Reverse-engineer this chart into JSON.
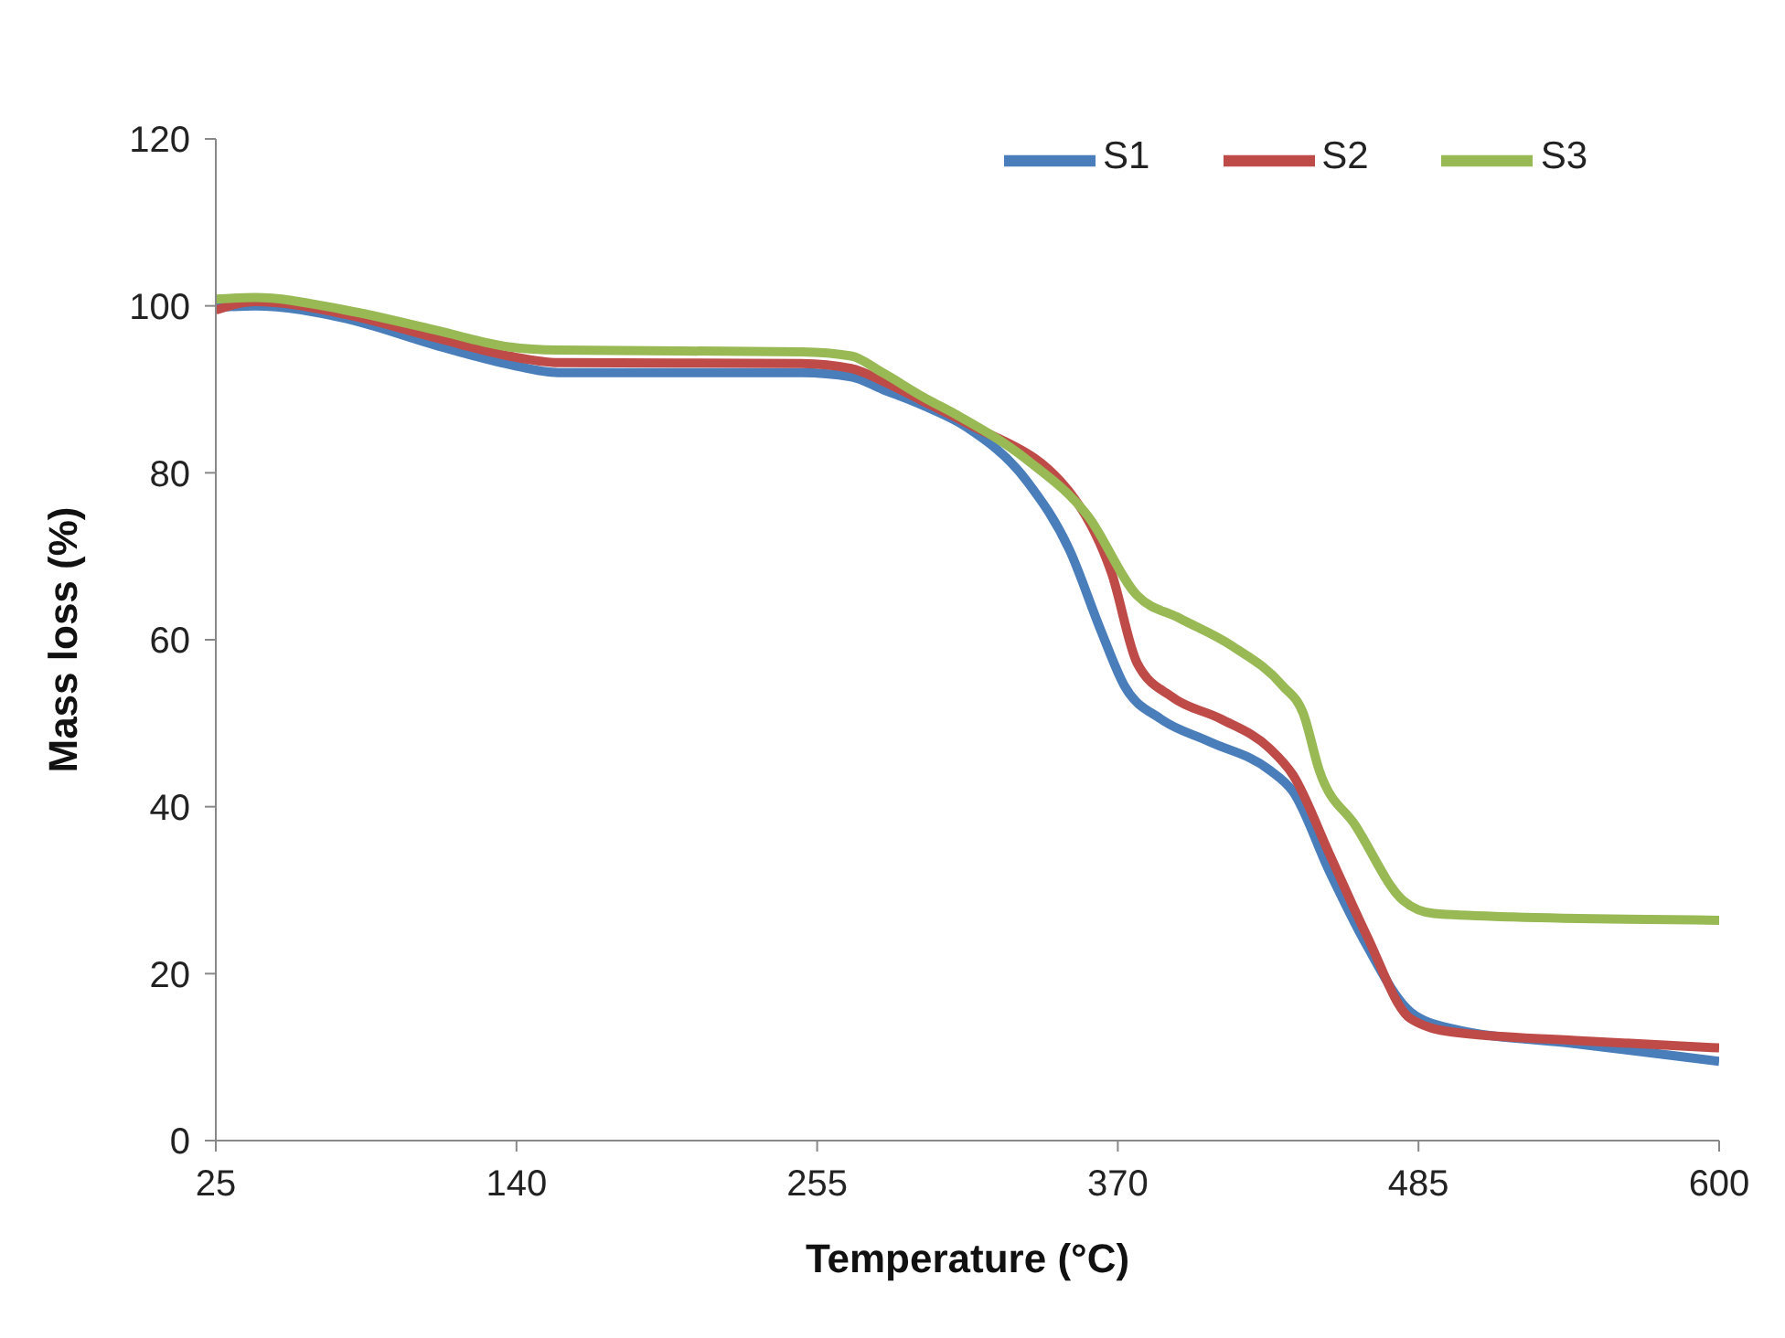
{
  "chart_data": {
    "type": "line",
    "xlabel": "Temperature (°C)",
    "ylabel": "Mass loss (%)",
    "xlim": [
      25,
      600
    ],
    "xticks": [
      25,
      140,
      255,
      370,
      485,
      600
    ],
    "ylim": [
      0,
      120
    ],
    "yticks": [
      0,
      20,
      40,
      60,
      80,
      100,
      120
    ],
    "grid": false,
    "legend": "top right",
    "marker": "none",
    "line_style": "solid",
    "series": [
      {
        "name": "S1",
        "color": "#4a7ebb",
        "x": [
          25,
          40,
          74.5,
          109,
          137,
          156,
          249,
          268,
          280,
          296,
          312,
          335.5,
          351.6,
          363.4,
          372.5,
          386.5,
          405,
          428,
          437,
          451,
          465,
          482,
          498,
          545,
          600
        ],
        "values": [
          99.8,
          100,
          98.5,
          95.3,
          93,
          92,
          92,
          91.5,
          90,
          88,
          85.5,
          78.9,
          70.7,
          61.2,
          54.5,
          50.5,
          47.8,
          44.4,
          41.8,
          32.2,
          23.5,
          15.4,
          13.4,
          11.6,
          9.5
        ]
      },
      {
        "name": "S2",
        "color": "#be4b48",
        "x": [
          25,
          40,
          74.5,
          109,
          137,
          156,
          249,
          268,
          280,
          296,
          312,
          353.7,
          367.6,
          377.4,
          391,
          409.5,
          428,
          437,
          451,
          465,
          482,
          498,
          545,
          600
        ],
        "values": [
          99.5,
          100.5,
          99,
          96.2,
          94,
          93.2,
          93.1,
          92.5,
          91,
          88.5,
          86,
          76.8,
          68,
          57.2,
          53.1,
          50.5,
          47,
          43.8,
          34.3,
          24.7,
          14.6,
          13,
          12,
          11.1
        ]
      },
      {
        "name": "S3",
        "color": "#98b954",
        "x": [
          25,
          40,
          74.5,
          109,
          137,
          156,
          249,
          268,
          280,
          296,
          308,
          335.5,
          358.6,
          377.4,
          393.5,
          414,
          433,
          441,
          447,
          461,
          479,
          491,
          521,
          600
        ],
        "values": [
          100.8,
          101,
          99.5,
          97.1,
          95.1,
          94.7,
          94.5,
          94,
          92,
          89,
          87,
          81.5,
          74.8,
          65.3,
          62.6,
          59.2,
          54.5,
          51.1,
          44.4,
          37.7,
          28.8,
          27.2,
          26.8,
          26.4
        ]
      }
    ]
  }
}
